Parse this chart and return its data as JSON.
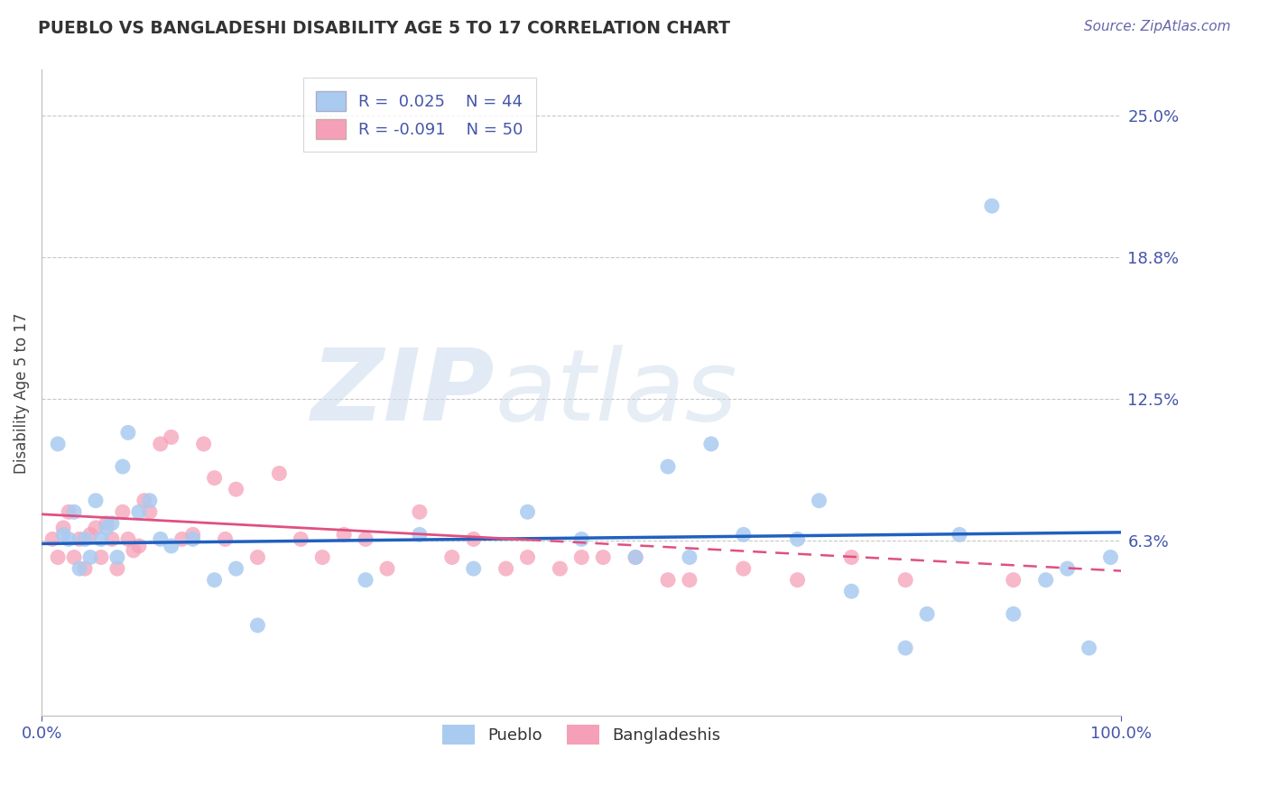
{
  "title": "PUEBLO VS BANGLADESHI DISABILITY AGE 5 TO 17 CORRELATION CHART",
  "source": "Source: ZipAtlas.com",
  "ylabel": "Disability Age 5 to 17",
  "xlim": [
    0,
    100
  ],
  "ylim": [
    -1.5,
    27
  ],
  "yticks": [
    6.25,
    12.5,
    18.75,
    25.0
  ],
  "ytick_labels": [
    "6.3%",
    "12.5%",
    "18.8%",
    "25.0%"
  ],
  "xtick_labels": [
    "0.0%",
    "100.0%"
  ],
  "pueblo_color": "#aacbf0",
  "bangladeshi_color": "#f5a0b8",
  "trend_pueblo_color": "#2060c0",
  "trend_bangladeshi_color": "#e05080",
  "pueblo_R": 0.025,
  "pueblo_N": 44,
  "bangladeshi_R": -0.091,
  "bangladeshi_N": 50,
  "watermark_ZIP": "ZIP",
  "watermark_atlas": "atlas",
  "background_color": "#ffffff",
  "grid_color": "#c8c8c8",
  "legend_pueblo": "Pueblo",
  "legend_bangladeshi": "Bangladeshis",
  "pueblo_x": [
    1.5,
    2.0,
    2.5,
    3.0,
    3.5,
    4.0,
    4.5,
    5.0,
    5.5,
    6.0,
    6.5,
    7.0,
    7.5,
    8.0,
    9.0,
    10.0,
    11.0,
    12.0,
    14.0,
    16.0,
    18.0,
    20.0,
    30.0,
    35.0,
    40.0,
    45.0,
    50.0,
    55.0,
    58.0,
    60.0,
    62.0,
    65.0,
    70.0,
    72.0,
    75.0,
    80.0,
    82.0,
    85.0,
    88.0,
    90.0,
    93.0,
    95.0,
    97.0,
    99.0
  ],
  "pueblo_y": [
    10.5,
    6.5,
    6.3,
    7.5,
    5.0,
    6.3,
    5.5,
    8.0,
    6.3,
    6.8,
    7.0,
    5.5,
    9.5,
    11.0,
    7.5,
    8.0,
    6.3,
    6.0,
    6.3,
    4.5,
    5.0,
    2.5,
    4.5,
    6.5,
    5.0,
    7.5,
    6.3,
    5.5,
    9.5,
    5.5,
    10.5,
    6.5,
    6.3,
    8.0,
    4.0,
    1.5,
    3.0,
    6.5,
    21.0,
    3.0,
    4.5,
    5.0,
    1.5,
    5.5
  ],
  "bangladeshi_x": [
    1.0,
    1.5,
    2.0,
    2.5,
    3.0,
    3.5,
    4.0,
    4.5,
    5.0,
    5.5,
    6.0,
    6.5,
    7.0,
    7.5,
    8.0,
    8.5,
    9.0,
    9.5,
    10.0,
    11.0,
    12.0,
    13.0,
    14.0,
    15.0,
    16.0,
    17.0,
    18.0,
    20.0,
    22.0,
    24.0,
    26.0,
    28.0,
    30.0,
    32.0,
    35.0,
    38.0,
    40.0,
    43.0,
    45.0,
    48.0,
    50.0,
    52.0,
    55.0,
    58.0,
    60.0,
    65.0,
    70.0,
    75.0,
    80.0,
    90.0
  ],
  "bangladeshi_y": [
    6.3,
    5.5,
    6.8,
    7.5,
    5.5,
    6.3,
    5.0,
    6.5,
    6.8,
    5.5,
    7.0,
    6.3,
    5.0,
    7.5,
    6.3,
    5.8,
    6.0,
    8.0,
    7.5,
    10.5,
    10.8,
    6.3,
    6.5,
    10.5,
    9.0,
    6.3,
    8.5,
    5.5,
    9.2,
    6.3,
    5.5,
    6.5,
    6.3,
    5.0,
    7.5,
    5.5,
    6.3,
    5.0,
    5.5,
    5.0,
    5.5,
    5.5,
    5.5,
    4.5,
    4.5,
    5.0,
    4.5,
    5.5,
    4.5,
    4.5
  ]
}
